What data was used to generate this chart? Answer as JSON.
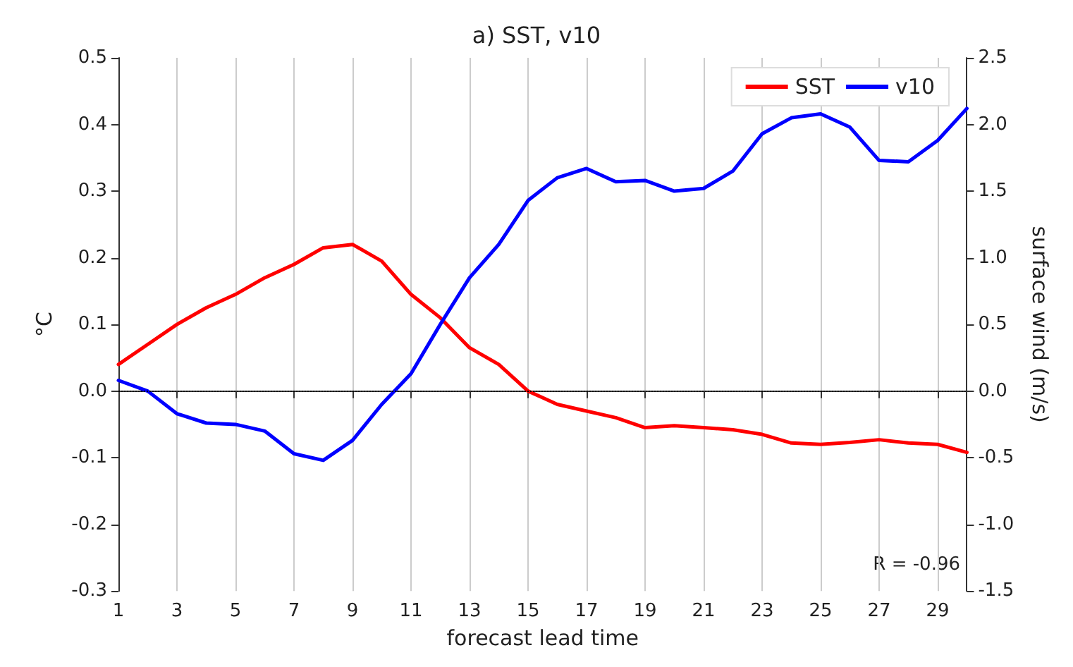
{
  "chart_data": {
    "type": "line",
    "title": "a) SST, v10",
    "xlabel": "forecast lead time",
    "ylabel": "°C",
    "y2label": "surface wind (m/s)",
    "x": [
      1,
      2,
      3,
      4,
      5,
      6,
      7,
      8,
      9,
      10,
      11,
      12,
      13,
      14,
      15,
      16,
      17,
      18,
      19,
      20,
      21,
      22,
      23,
      24,
      25,
      26,
      27,
      28,
      29,
      30
    ],
    "series": [
      {
        "name": "SST",
        "color": "#ff0000",
        "values": [
          0.04,
          0.07,
          0.1,
          0.125,
          0.145,
          0.17,
          0.19,
          0.215,
          0.22,
          0.195,
          0.145,
          0.11,
          0.065,
          0.04,
          0.0,
          -0.02,
          -0.03,
          -0.04,
          -0.055,
          -0.052,
          -0.055,
          -0.058,
          -0.065,
          -0.078,
          -0.08,
          -0.077,
          -0.073,
          -0.078,
          -0.08,
          -0.092
        ]
      },
      {
        "name": "v10",
        "color": "#0000ff",
        "axis": "y2",
        "values": [
          0.08,
          0.0,
          -0.17,
          -0.24,
          -0.25,
          -0.3,
          -0.47,
          -0.52,
          -0.37,
          -0.1,
          0.13,
          0.5,
          0.85,
          1.1,
          1.43,
          1.6,
          1.67,
          1.57,
          1.58,
          1.5,
          1.52,
          1.65,
          1.93,
          2.05,
          2.08,
          1.98,
          1.73,
          1.72,
          1.88,
          2.12
        ]
      }
    ],
    "xlim": [
      1,
      30
    ],
    "xticks": [
      1,
      3,
      5,
      7,
      9,
      11,
      13,
      15,
      17,
      19,
      21,
      23,
      25,
      27,
      29
    ],
    "ylim": [
      -0.3,
      0.5
    ],
    "yticks": [
      -0.3,
      -0.2,
      -0.1,
      {
        "value": 0,
        "label": "0.0"
      },
      0.1,
      0.2,
      0.3,
      0.4,
      0.5
    ],
    "y2lim": [
      -1.5,
      2.5
    ],
    "y2ticks": [
      -1.5,
      {
        "value": -1,
        "label": "-1.0"
      },
      -0.5,
      {
        "value": 0,
        "label": "0.0"
      },
      0.5,
      {
        "value": 1,
        "label": "1.0"
      },
      1.5,
      {
        "value": 2,
        "label": "2.0"
      },
      2.5
    ],
    "ref_lines": [
      {
        "axis": "y",
        "value": 0,
        "color": "#000000",
        "line_style": "dotted"
      }
    ],
    "annotations": [
      "R = -0.96"
    ],
    "grid": "x",
    "legend": "top right",
    "line_style": "solid",
    "marker": "none"
  }
}
